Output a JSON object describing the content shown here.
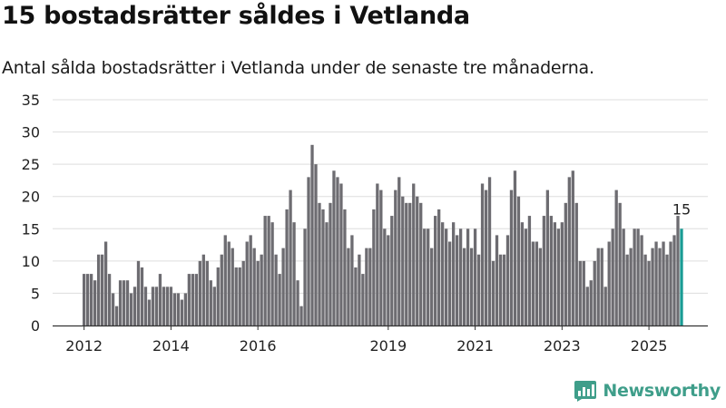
{
  "header": {
    "title": "15 bostadsrätter såldes i Vetlanda",
    "subtitle": "Antal sålda bostadsrätter i Vetlanda under de senaste tre månaderna."
  },
  "brand": {
    "name": "Newsworthy",
    "color": "#3f9e8a"
  },
  "colors": {
    "bar": "#6d6c71",
    "highlight": "#1a9c94",
    "grid": "#dddddd",
    "axis": "#333333"
  },
  "chart_data": {
    "type": "bar",
    "title": "15 bostadsrätter såldes i Vetlanda",
    "xlabel": "",
    "ylabel": "",
    "ylim": [
      0,
      35
    ],
    "yticks": [
      0,
      5,
      10,
      15,
      20,
      25,
      30,
      35
    ],
    "grid": true,
    "start": "2012-01",
    "xtick_years": [
      "2012",
      "2014",
      "2016",
      "2019",
      "2021",
      "2023",
      "2025"
    ],
    "values": [
      8,
      8,
      8,
      7,
      11,
      11,
      13,
      8,
      5,
      3,
      7,
      7,
      7,
      5,
      6,
      10,
      9,
      6,
      4,
      6,
      6,
      8,
      6,
      6,
      6,
      5,
      5,
      4,
      5,
      8,
      8,
      8,
      10,
      11,
      10,
      7,
      6,
      9,
      11,
      14,
      13,
      12,
      9,
      9,
      10,
      13,
      14,
      12,
      10,
      11,
      17,
      17,
      16,
      11,
      8,
      12,
      18,
      21,
      16,
      7,
      3,
      15,
      23,
      28,
      25,
      19,
      18,
      16,
      19,
      24,
      23,
      22,
      18,
      12,
      14,
      9,
      11,
      8,
      12,
      12,
      18,
      22,
      21,
      15,
      14,
      17,
      21,
      23,
      20,
      19,
      19,
      22,
      20,
      19,
      15,
      15,
      12,
      17,
      18,
      16,
      15,
      13,
      16,
      14,
      15,
      12,
      15,
      12,
      15,
      11,
      22,
      21,
      23,
      10,
      14,
      11,
      11,
      14,
      21,
      24,
      20,
      16,
      15,
      17,
      13,
      13,
      12,
      17,
      21,
      17,
      16,
      15,
      16,
      19,
      23,
      24,
      19,
      10,
      10,
      6,
      7,
      10,
      12,
      12,
      6,
      13,
      15,
      21,
      19,
      15,
      11,
      12,
      15,
      15,
      14,
      11,
      10,
      12,
      13,
      12,
      13,
      11,
      13,
      14,
      17,
      15
    ],
    "highlight_last": true,
    "annotation": {
      "label": "15"
    }
  }
}
